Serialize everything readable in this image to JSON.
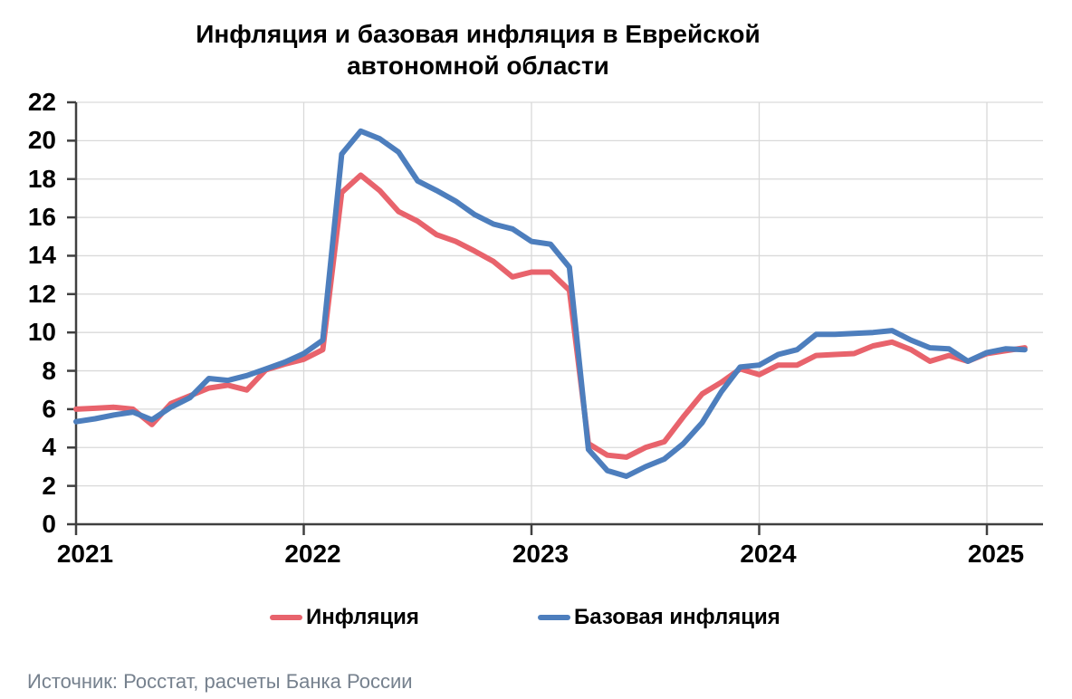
{
  "title": {
    "line1": "Инфляция и базовая инфляция в Еврейской",
    "line2": "автономной области"
  },
  "source": "Источник: Росстат, расчеты Банка России",
  "colors": {
    "inflation": "#E8636C",
    "core_inflation": "#4D7EBD",
    "grid": "#D9D9D9",
    "axis": "#404040",
    "source_text": "#76818E"
  },
  "chart_data": {
    "type": "line",
    "title": "Инфляция и базовая инфляция в Еврейской автономной области",
    "x_start": "2021-01",
    "x_end": "2025-03",
    "frequency": "monthly",
    "x_tick_labels": [
      "2021",
      "2022",
      "2023",
      "2024",
      "2025"
    ],
    "y_ticks": [
      0,
      2,
      4,
      6,
      8,
      10,
      12,
      14,
      16,
      18,
      20,
      22
    ],
    "ylim": [
      0,
      22
    ],
    "grid": true,
    "legend_position": "bottom",
    "units": "%",
    "series": [
      {
        "name": "Инфляция",
        "color": "#E8636C",
        "values": [
          6.0,
          6.05,
          6.1,
          6.0,
          5.2,
          6.3,
          6.7,
          7.1,
          7.25,
          7.0,
          8.05,
          8.35,
          8.6,
          9.1,
          17.3,
          18.2,
          17.4,
          16.3,
          15.8,
          15.1,
          14.75,
          14.25,
          13.7,
          12.9,
          13.15,
          13.15,
          12.2,
          4.2,
          3.6,
          3.5,
          4.0,
          4.3,
          5.6,
          6.8,
          7.4,
          8.1,
          7.8,
          8.3,
          8.3,
          8.8,
          8.85,
          8.9,
          9.3,
          9.5,
          9.1,
          8.5,
          8.8,
          8.5,
          8.9,
          9.05,
          9.2
        ]
      },
      {
        "name": "Базовая инфляция",
        "color": "#4D7EBD",
        "values": [
          5.35,
          5.5,
          5.7,
          5.85,
          5.45,
          6.1,
          6.6,
          7.6,
          7.5,
          7.75,
          8.1,
          8.45,
          8.9,
          9.6,
          19.3,
          20.5,
          20.1,
          19.4,
          17.9,
          17.4,
          16.85,
          16.15,
          15.65,
          15.4,
          14.75,
          14.6,
          13.4,
          3.9,
          2.8,
          2.5,
          3.0,
          3.4,
          4.2,
          5.3,
          6.9,
          8.2,
          8.3,
          8.85,
          9.1,
          9.9,
          9.9,
          9.95,
          10.0,
          10.1,
          9.6,
          9.2,
          9.15,
          8.5,
          8.95,
          9.15,
          9.1
        ]
      }
    ]
  }
}
